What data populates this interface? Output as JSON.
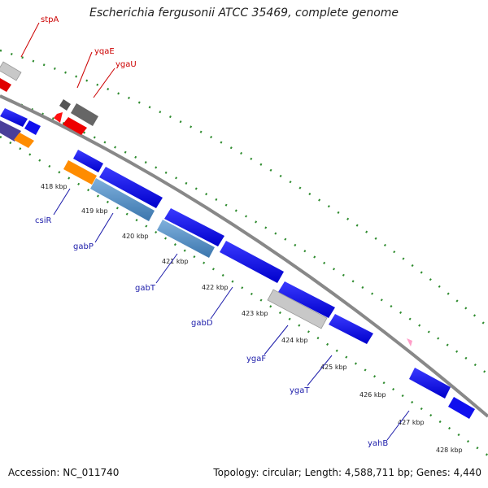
{
  "title": "Escherichia fergusonii ATCC 35469, complete genome",
  "footer": {
    "accession": "Accession: NC_011740",
    "summary": "Topology: circular; Length: 4,588,711 bp; Genes: 4,440"
  },
  "colors": {
    "backbone": "#888888",
    "tick_dots": "#2e8b2e",
    "label_red": "#cc0000",
    "label_blue": "#1c1caa",
    "marker_pink": "#ff9ec8"
  },
  "kbp_ticks": [
    "418 kbp",
    "419 kbp",
    "420 kbp",
    "421 kbp",
    "422 kbp",
    "423 kbp",
    "424 kbp",
    "425 kbp",
    "426 kbp",
    "427 kbp",
    "428 kbp"
  ],
  "gene_labels": {
    "top": [
      "stpA",
      "yqaE",
      "ygaU"
    ],
    "bottom": [
      "csiR",
      "gabP",
      "gabT",
      "gabD",
      "ygaF",
      "ygaT",
      "yahB"
    ]
  }
}
